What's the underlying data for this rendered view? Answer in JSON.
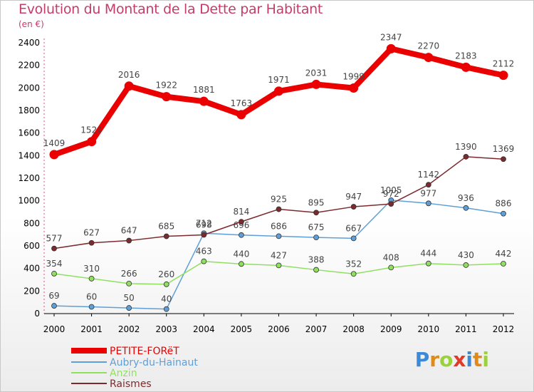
{
  "chart_data": {
    "type": "line",
    "title": "Evolution du Montant de la Dette par Habitant",
    "subtitle": "(en €)",
    "x": [
      "2000",
      "2001",
      "2002",
      "2003",
      "2004",
      "2005",
      "2006",
      "2007",
      "2008",
      "2009",
      "2010",
      "2011",
      "2012"
    ],
    "ylim": [
      0,
      2400
    ],
    "yticks": [
      0,
      200,
      400,
      600,
      800,
      1000,
      1200,
      1400,
      1600,
      1800,
      2000,
      2200,
      2400
    ],
    "grid": false,
    "legend": "bottom-left",
    "series": [
      {
        "name": "PETITE-FORëT",
        "color": "#ea0000",
        "values": [
          1409,
          1524,
          2016,
          1922,
          1881,
          1763,
          1971,
          2031,
          1999,
          2347,
          2270,
          2183,
          2112
        ]
      },
      {
        "name": "Aubry-du-Hainaut",
        "color": "#5f9fd8",
        "values": [
          69,
          60,
          50,
          40,
          712,
          696,
          686,
          675,
          667,
          1005,
          977,
          936,
          886
        ]
      },
      {
        "name": "Anzin",
        "color": "#90e060",
        "values": [
          354,
          310,
          266,
          260,
          463,
          440,
          427,
          388,
          352,
          408,
          444,
          430,
          442
        ]
      },
      {
        "name": "Raismes",
        "color": "#7c2a2e",
        "values": [
          577,
          627,
          647,
          685,
          698,
          814,
          925,
          895,
          947,
          972,
          1142,
          1390,
          1369
        ]
      }
    ]
  },
  "logo": {
    "letters": [
      "P",
      "r",
      "o",
      "x",
      "i",
      "t",
      "i"
    ],
    "colors": [
      "#3a8ad8",
      "#e08a1a",
      "#9ad23a",
      "#e03a2a",
      "#3a8ad8",
      "#e08a1a",
      "#9ad23a"
    ]
  }
}
